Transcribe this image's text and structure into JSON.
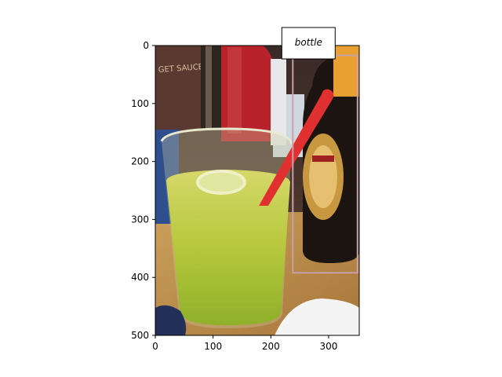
{
  "axes": {
    "x_ticks": [
      "0",
      "100",
      "200",
      "300"
    ],
    "y_ticks": [
      "0",
      "100",
      "200",
      "300",
      "400",
      "500"
    ],
    "x_tick_values": [
      0,
      100,
      200,
      300
    ],
    "y_tick_values": [
      0,
      100,
      200,
      300,
      400,
      500
    ],
    "xlim": [
      0,
      353
    ],
    "ylim": [
      500,
      0
    ]
  },
  "annotation": {
    "label": "bottle",
    "box": {
      "x0": 238,
      "y0": 17,
      "x1": 350,
      "y1": 392
    },
    "edge_color": "#c8a0a8"
  },
  "scene": {
    "description_objects": [
      "glass-with-green-drink",
      "red-straw",
      "lime-slice",
      "beer-bottle",
      "ketchup-bottle",
      "sauce-jar",
      "wooden-table",
      "napkin",
      "blue-cloth"
    ]
  }
}
